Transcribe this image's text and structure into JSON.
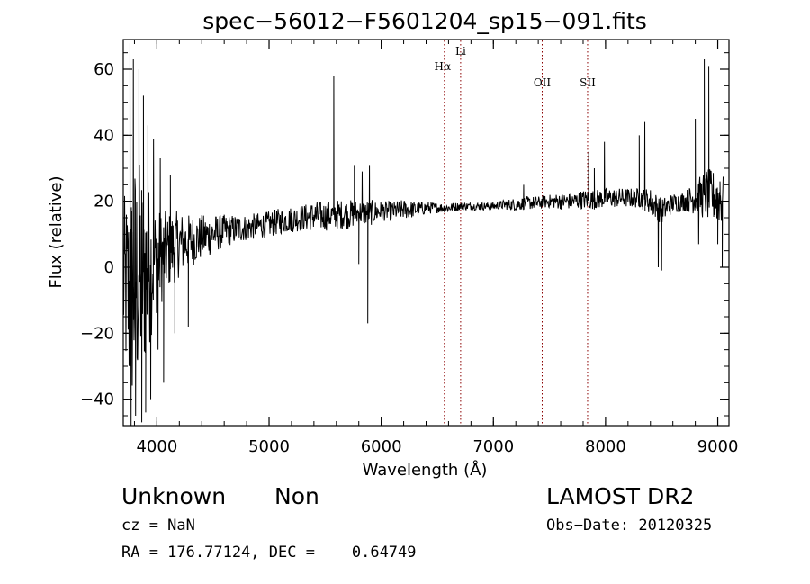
{
  "chart_data": {
    "type": "line",
    "title": "spec−56012−F5601204_sp15−091.fits",
    "xlabel": "Wavelength (Å)",
    "ylabel": "Flux (relative)",
    "xlim": [
      3700,
      9100
    ],
    "ylim": [
      -48,
      69
    ],
    "x_ticks": [
      {
        "value": 4000,
        "label": "4000"
      },
      {
        "value": 5000,
        "label": "5000"
      },
      {
        "value": 6000,
        "label": "6000"
      },
      {
        "value": 7000,
        "label": "7000"
      },
      {
        "value": 8000,
        "label": "8000"
      },
      {
        "value": 9000,
        "label": "9000"
      }
    ],
    "y_ticks": [
      {
        "value": -40,
        "label": "−40"
      },
      {
        "value": -20,
        "label": "−20"
      },
      {
        "value": 0,
        "label": "0"
      },
      {
        "value": 20,
        "label": "20"
      },
      {
        "value": 40,
        "label": "40"
      },
      {
        "value": 60,
        "label": "60"
      }
    ],
    "x_minor_step": 200,
    "y_minor_step": 5,
    "grid": false,
    "series_color": "#000000",
    "marker_color": "#8b0000",
    "series": [
      {
        "name": "",
        "x": [
          3700,
          3760,
          3800,
          3850,
          3900,
          3950,
          4000,
          4100,
          4200,
          4300,
          4400,
          4500,
          4600,
          4700,
          4800,
          4900,
          5000,
          5100,
          5200,
          5300,
          5400,
          5500,
          5600,
          5700,
          5800,
          5900,
          6000,
          6100,
          6200,
          6300,
          6400,
          6500,
          6600,
          6700,
          6800,
          6900,
          7000,
          7100,
          7200,
          7300,
          7400,
          7500,
          7600,
          7700,
          7800,
          7900,
          8000,
          8100,
          8200,
          8300,
          8400,
          8500,
          8600,
          8700,
          8800,
          8900,
          9000,
          9050
        ],
        "y": [
          -4,
          -10,
          -5,
          -2,
          -1,
          1,
          2,
          5,
          7,
          8,
          9,
          10,
          11,
          11.5,
          12,
          12.5,
          13,
          14,
          14.5,
          15,
          15.5,
          15.5,
          16,
          16,
          16.5,
          16.5,
          17,
          17,
          17.5,
          17.5,
          18,
          18,
          18,
          18.5,
          18.5,
          18.5,
          18.5,
          19,
          19,
          19.5,
          19.5,
          20,
          20,
          20,
          20.5,
          20.5,
          21,
          21,
          21,
          21,
          20,
          17,
          19.5,
          20,
          21,
          22,
          21,
          20
        ],
        "noise_amplitude": [
          25,
          35,
          38,
          35,
          30,
          22,
          16,
          12,
          10,
          8,
          7,
          6,
          5,
          4.5,
          4,
          4,
          4,
          4,
          4,
          4,
          4.5,
          4.5,
          4.5,
          4.5,
          4,
          4,
          3,
          3,
          3,
          2.5,
          2,
          1.5,
          1.5,
          1.2,
          1.2,
          1.2,
          1.2,
          1.5,
          2,
          2,
          2,
          2,
          2.5,
          2.5,
          3,
          3,
          3,
          3,
          3,
          3,
          4,
          4,
          3,
          3,
          5,
          8,
          8,
          8
        ],
        "spikes": [
          {
            "x": 3760,
            "y": 68
          },
          {
            "x": 3770,
            "y": -48
          },
          {
            "x": 3790,
            "y": 63
          },
          {
            "x": 3810,
            "y": -45
          },
          {
            "x": 3840,
            "y": 60
          },
          {
            "x": 3865,
            "y": -47
          },
          {
            "x": 3880,
            "y": 52
          },
          {
            "x": 3900,
            "y": -44
          },
          {
            "x": 3920,
            "y": 43
          },
          {
            "x": 3945,
            "y": -40
          },
          {
            "x": 3970,
            "y": 39
          },
          {
            "x": 4010,
            "y": -25
          },
          {
            "x": 4030,
            "y": 33
          },
          {
            "x": 4060,
            "y": -35
          },
          {
            "x": 4120,
            "y": 28
          },
          {
            "x": 4160,
            "y": -20
          },
          {
            "x": 4280,
            "y": -18
          },
          {
            "x": 5577,
            "y": 58
          },
          {
            "x": 5760,
            "y": 31
          },
          {
            "x": 5800,
            "y": 1
          },
          {
            "x": 5830,
            "y": 29
          },
          {
            "x": 5880,
            "y": -17
          },
          {
            "x": 5895,
            "y": 31
          },
          {
            "x": 7270,
            "y": 25
          },
          {
            "x": 7850,
            "y": 35
          },
          {
            "x": 7900,
            "y": 30
          },
          {
            "x": 7990,
            "y": 38
          },
          {
            "x": 8300,
            "y": 40
          },
          {
            "x": 8350,
            "y": 44
          },
          {
            "x": 8470,
            "y": 0
          },
          {
            "x": 8500,
            "y": -1
          },
          {
            "x": 8800,
            "y": 45
          },
          {
            "x": 8830,
            "y": 7
          },
          {
            "x": 8880,
            "y": 63
          },
          {
            "x": 8920,
            "y": 61
          },
          {
            "x": 8960,
            "y": 28
          },
          {
            "x": 9000,
            "y": 7
          },
          {
            "x": 9020,
            "y": 26
          },
          {
            "x": 9040,
            "y": 0
          }
        ]
      }
    ],
    "line_markers": [
      {
        "label": "Hα",
        "x": 6563
      },
      {
        "label": "Li",
        "x": 6708
      },
      {
        "label": "OII",
        "x": 7435
      },
      {
        "label": "SII",
        "x": 7840
      }
    ]
  },
  "footer": {
    "class_label": "Unknown",
    "subclass_label": "Non",
    "survey_label": "LAMOST DR2",
    "cz_text": "cz = NaN",
    "obs_date_text": "Obs−Date: 20120325",
    "coords_text": "RA = 176.77124, DEC =    0.64749"
  }
}
